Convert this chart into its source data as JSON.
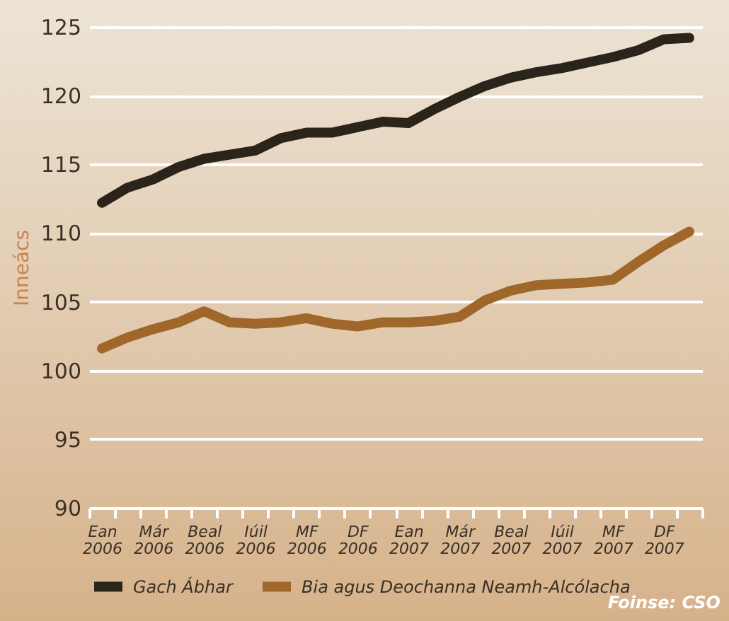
{
  "chart_data": {
    "type": "line",
    "ylabel": "Inneács",
    "categories": [
      "Ean 2006",
      null,
      "Már 2006",
      null,
      "Beal 2006",
      null,
      "Iúil 2006",
      null,
      "MF 2006",
      null,
      "DF 2006",
      null,
      "Ean 2007",
      null,
      "Már 2007",
      null,
      "Beal 2007",
      null,
      "Iúil 2007",
      null,
      "MF 2007",
      null,
      "DF 2007",
      null
    ],
    "series": [
      {
        "name": "Gach Ábhar",
        "color": "#2b241b",
        "values": [
          112.2,
          113.3,
          113.9,
          114.8,
          115.4,
          115.7,
          116.0,
          116.9,
          117.3,
          117.3,
          117.7,
          118.1,
          118.0,
          119.0,
          119.9,
          120.7,
          121.3,
          121.7,
          122.0,
          122.4,
          122.8,
          123.3,
          124.1,
          124.2
        ]
      },
      {
        "name": "Bia agus Deochanna Neamh-Alcólacha",
        "color": "#a0672a",
        "values": [
          101.6,
          102.4,
          103.0,
          103.5,
          104.3,
          103.5,
          103.4,
          103.5,
          103.8,
          103.4,
          103.2,
          103.5,
          103.5,
          103.6,
          103.9,
          105.1,
          105.8,
          106.2,
          106.3,
          106.4,
          106.6,
          107.9,
          109.1,
          110.1
        ]
      }
    ],
    "ylim": [
      90,
      125
    ],
    "yticks": [
      90,
      95,
      100,
      105,
      110,
      115,
      120,
      125
    ],
    "grid": "y",
    "legend": "bottom left",
    "marker": "none",
    "line_style": "solid",
    "annotations": [
      "Foinse: CSO"
    ]
  }
}
